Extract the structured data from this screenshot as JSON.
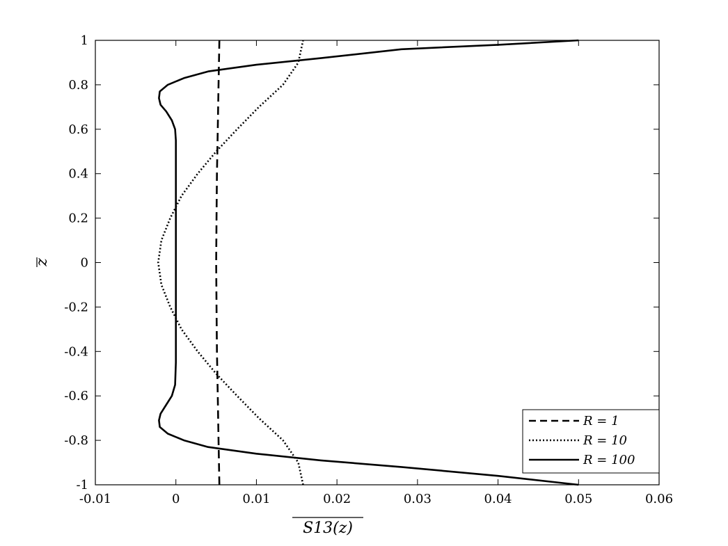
{
  "chart_data": {
    "type": "line",
    "xlabel": "S13(z)",
    "ylabel": "z",
    "xlim": [
      -0.01,
      0.06
    ],
    "ylim": [
      -1,
      1
    ],
    "xticks": [
      -0.01,
      0,
      0.01,
      0.02,
      0.03,
      0.04,
      0.05,
      0.06
    ],
    "yticks": [
      -1,
      -0.8,
      -0.6,
      -0.4,
      -0.2,
      0,
      0.2,
      0.4,
      0.6,
      0.8,
      1
    ],
    "xtick_labels": [
      "-0.01",
      "0",
      "0.01",
      "0.02",
      "0.03",
      "0.04",
      "0.05",
      "0.06"
    ],
    "ytick_labels": [
      "-1",
      "-0.8",
      "-0.6",
      "-0.4",
      "-0.2",
      "0",
      "0.2",
      "0.4",
      "0.6",
      "0.8",
      "1"
    ],
    "grid": false,
    "legend_position": "bottom-right",
    "series": [
      {
        "name": "R = 1",
        "style": "dashed",
        "x": [
          0.0054,
          0.0053,
          0.0052,
          0.0051,
          0.00505,
          0.005,
          0.00505,
          0.0051,
          0.0052,
          0.0053,
          0.0054
        ],
        "y": [
          -1,
          -0.8,
          -0.6,
          -0.4,
          -0.2,
          0,
          0.2,
          0.4,
          0.6,
          0.8,
          1
        ]
      },
      {
        "name": "R = 10",
        "style": "dotted",
        "x": [
          0.0158,
          0.0152,
          0.0133,
          0.0103,
          0.0076,
          0.005,
          0.0027,
          0.0007,
          -0.0007,
          -0.0018,
          -0.0022,
          -0.0018,
          -0.0007,
          0.0007,
          0.0027,
          0.005,
          0.0076,
          0.0103,
          0.0133,
          0.0152,
          0.0158
        ],
        "y": [
          -1,
          -0.9,
          -0.8,
          -0.7,
          -0.6,
          -0.5,
          -0.4,
          -0.3,
          -0.2,
          -0.1,
          0,
          0.1,
          0.2,
          0.3,
          0.4,
          0.5,
          0.6,
          0.7,
          0.8,
          0.9,
          1
        ]
      },
      {
        "name": "R = 100",
        "style": "solid",
        "x": [
          0.05,
          0.04,
          0.028,
          0.018,
          0.01,
          0.004,
          0.001,
          -0.001,
          -0.002,
          -0.0021,
          -0.0019,
          -0.0012,
          -0.0005,
          -0.0001,
          0.0,
          0.0,
          0.0,
          0.0,
          -0.0001,
          -0.0005,
          -0.0012,
          -0.0019,
          -0.0021,
          -0.002,
          -0.001,
          0.001,
          0.004,
          0.01,
          0.018,
          0.028,
          0.04,
          0.05
        ],
        "y": [
          -1,
          -0.96,
          -0.92,
          -0.89,
          -0.86,
          -0.83,
          -0.8,
          -0.77,
          -0.74,
          -0.71,
          -0.68,
          -0.64,
          -0.6,
          -0.55,
          -0.45,
          0,
          0.45,
          0.55,
          0.6,
          0.64,
          0.68,
          0.71,
          0.74,
          0.77,
          0.8,
          0.83,
          0.86,
          0.89,
          0.92,
          0.96,
          0.98,
          1
        ]
      }
    ]
  }
}
